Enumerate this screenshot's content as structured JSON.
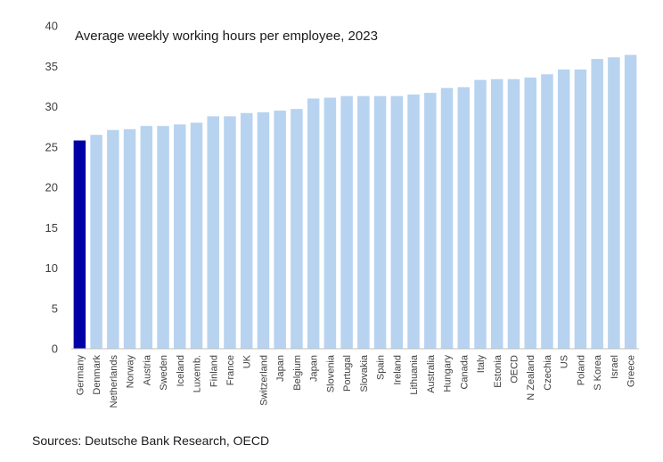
{
  "chart_data": {
    "type": "bar",
    "title": "Average weekly working hours per employee, 2023",
    "xlabel": "",
    "ylabel": "",
    "ylim": [
      0,
      40
    ],
    "yticks": [
      0,
      5,
      10,
      15,
      20,
      25,
      30,
      35,
      40
    ],
    "grid": false,
    "categories": [
      "Germany",
      "Denmark",
      "Netherlands",
      "Norway",
      "Austria",
      "Sweden",
      "Iceland",
      "Luxemb.",
      "Finland",
      "France",
      "UK",
      "Switzerland",
      "Japan",
      "Belgium",
      "Japan",
      "Slovenia",
      "Portugal",
      "Slovakia",
      "Spain",
      "Ireland",
      "Lithuania",
      "Australia",
      "Hungary",
      "Canada",
      "Italy",
      "Estonia",
      "OECD",
      "N Zealand",
      "Czechia",
      "US",
      "Poland",
      "S Korea",
      "Israel",
      "Greece"
    ],
    "values": [
      25.8,
      26.5,
      27.1,
      27.2,
      27.6,
      27.6,
      27.8,
      28.0,
      28.8,
      28.8,
      29.2,
      29.3,
      29.5,
      29.7,
      31.0,
      31.1,
      31.3,
      31.3,
      31.3,
      31.3,
      31.5,
      31.7,
      32.3,
      32.4,
      33.3,
      33.4,
      33.4,
      33.6,
      34.0,
      34.6,
      34.6,
      35.9,
      36.1,
      36.4
    ],
    "highlight": "Germany",
    "colors": {
      "highlight": "#0000a6",
      "bar": "#b7d3f0",
      "axis": "#bfbfbf"
    }
  },
  "source": "Sources: Deutsche Bank Research, OECD"
}
